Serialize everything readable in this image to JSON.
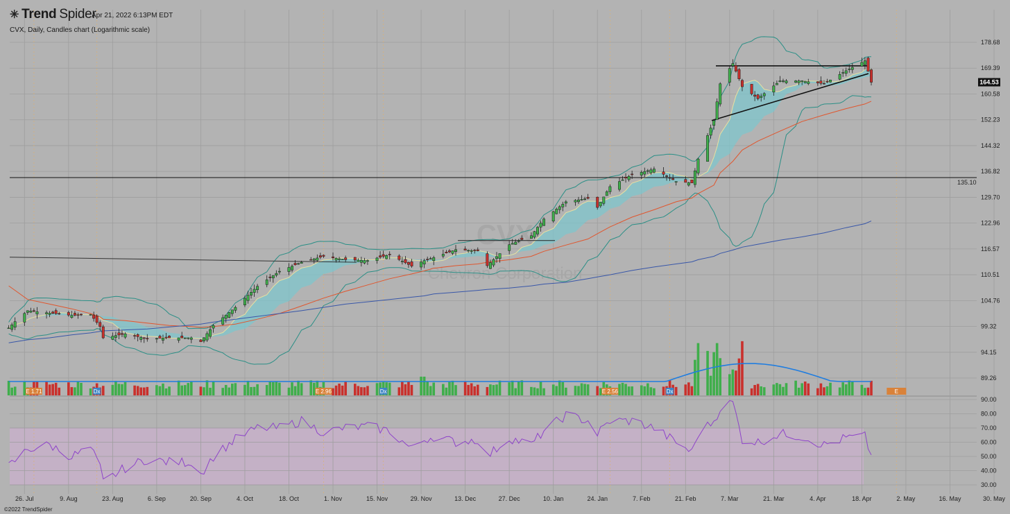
{
  "header": {
    "brand_bold": "Trend",
    "brand_light": "Spider",
    "logo_icon": "spider-logo-icon",
    "timestamp": "Apr 21, 2022 6:13PM EDT",
    "subtitle": "CVX, Daily, Candles chart (Logarithmic scale)"
  },
  "watermark": {
    "ticker": "CVX",
    "name": "Chevron Corporation"
  },
  "footer": {
    "copyright": "©2022 TrendSpider"
  },
  "colors": {
    "background": "#b3b3b3",
    "up_candle": "#3fae4b",
    "down_candle": "#c9302c",
    "bb_line": "#2a8f86",
    "ema_fill": "#7cc7cf",
    "sma50": "#e0562e",
    "sma200": "#3856a8",
    "vol_avg": "#1f7de0",
    "rsi": "#8e44c9",
    "rsi_band": "#c7b0c9"
  },
  "chart_data": [
    {
      "type": "line",
      "title": "CVX, Daily, Candles chart (Logarithmic scale)",
      "price_scale": "log",
      "ylim": [
        87.0,
        184.0
      ],
      "y_ticks": [
        "178.68",
        "169.39",
        "160.58",
        "152.23",
        "144.32",
        "136.82",
        "129.70",
        "122.96",
        "116.57",
        "110.51",
        "104.76",
        "99.32",
        "94.15",
        "89.26"
      ],
      "x_ticks": [
        "26. Jul",
        "9. Aug",
        "23. Aug",
        "6. Sep",
        "20. Sep",
        "4. Oct",
        "18. Oct",
        "1. Nov",
        "15. Nov",
        "29. Nov",
        "13. Dec",
        "27. Dec",
        "10. Jan",
        "24. Jan",
        "7. Feb",
        "21. Feb",
        "7. Mar",
        "21. Mar",
        "4. Apr",
        "18. Apr",
        "2. May",
        "16. May",
        "30. May"
      ],
      "last_price": "164.53",
      "horizontal_line": {
        "value": "135.10"
      },
      "x_dates": [
        "2021-07-21",
        "2021-07-23",
        "2021-07-27",
        "2021-08-03",
        "2021-08-10",
        "2021-08-16",
        "2021-08-19",
        "2021-08-20",
        "2021-08-27",
        "2021-09-03",
        "2021-09-10",
        "2021-09-17",
        "2021-09-20",
        "2021-09-24",
        "2021-10-01",
        "2021-10-08",
        "2021-10-15",
        "2021-10-22",
        "2021-10-29",
        "2021-11-05",
        "2021-11-12",
        "2021-11-19",
        "2021-11-26",
        "2021-11-30",
        "2021-12-03",
        "2021-12-10",
        "2021-12-17",
        "2021-12-20",
        "2021-12-27",
        "2022-01-03",
        "2022-01-07",
        "2022-01-14",
        "2022-01-21",
        "2022-01-24",
        "2022-01-28",
        "2022-02-04",
        "2022-02-11",
        "2022-02-18",
        "2022-02-23",
        "2022-02-25",
        "2022-03-02",
        "2022-03-04",
        "2022-03-08",
        "2022-03-11",
        "2022-03-16",
        "2022-03-23",
        "2022-03-30",
        "2022-04-06",
        "2022-04-13",
        "2022-04-19",
        "2022-04-21"
      ],
      "series": [
        {
          "name": "close",
          "values": [
            99.0,
            100.3,
            102.6,
            102.1,
            101.6,
            101.8,
            99.3,
            97.0,
            97.8,
            96.8,
            97.0,
            97.0,
            96.2,
            99.5,
            103.3,
            107.9,
            111.3,
            113.4,
            114.8,
            114.0,
            113.8,
            115.2,
            112.5,
            113.8,
            114.5,
            116.4,
            116.1,
            112.6,
            117.6,
            119.8,
            124.0,
            128.5,
            129.4,
            127.0,
            132.6,
            135.9,
            137.5,
            134.0,
            133.6,
            140.4,
            152.0,
            164.0,
            171.0,
            163.0,
            159.0,
            165.0,
            165.0,
            164.0,
            168.5,
            172.0,
            164.53
          ]
        },
        {
          "name": "sma50",
          "values": [
            108.0,
            107.0,
            105.0,
            104.0,
            103.0,
            102.0,
            101.3,
            100.8,
            100.5,
            100.0,
            99.5,
            99.3,
            99.1,
            99.3,
            99.8,
            100.8,
            102.0,
            103.6,
            105.3,
            106.8,
            108.2,
            109.6,
            110.7,
            111.4,
            112.0,
            112.6,
            113.0,
            113.4,
            114.0,
            114.8,
            116.0,
            117.5,
            119.0,
            120.3,
            122.0,
            124.5,
            126.4,
            128.5,
            129.5,
            130.7,
            133.0,
            136.4,
            139.7,
            143.0,
            145.7,
            148.7,
            151.7,
            153.8,
            155.8,
            157.3,
            158.2
          ]
        },
        {
          "name": "sma200",
          "values": [
            96.0,
            96.2,
            96.6,
            97.0,
            97.6,
            98.0,
            98.3,
            98.4,
            98.6,
            98.8,
            99.2,
            99.6,
            99.8,
            100.2,
            100.8,
            101.4,
            102.0,
            102.6,
            103.3,
            104.0,
            104.5,
            105.0,
            105.5,
            105.8,
            106.2,
            106.6,
            107.0,
            107.2,
            107.5,
            108.0,
            108.4,
            108.8,
            109.6,
            110.0,
            110.5,
            111.5,
            112.3,
            113.0,
            113.5,
            114.0,
            114.8,
            115.5,
            116.3,
            117.0,
            117.7,
            118.7,
            119.5,
            120.5,
            121.8,
            122.8,
            123.5
          ]
        }
      ]
    },
    {
      "type": "bar",
      "title": "",
      "markers": [
        {
          "date": "2021-07-29",
          "label": "E 1.71"
        },
        {
          "date": "2021-08-18",
          "label": "Dx"
        },
        {
          "date": "2021-10-29",
          "label": "E 2.96"
        },
        {
          "date": "2021-11-17",
          "label": "Dx"
        },
        {
          "date": "2022-01-28",
          "label": "E 2.56"
        },
        {
          "date": "2022-02-16",
          "label": "Dx"
        },
        {
          "date": "2022-04-29",
          "label": "E"
        }
      ]
    },
    {
      "type": "line",
      "title": "",
      "ylim": [
        25,
        92
      ],
      "y_ticks": [
        "90.00",
        "80.00",
        "70.00",
        "60.00",
        "50.00",
        "40.00",
        "30.00"
      ],
      "overbought": 70,
      "oversold": 30,
      "series": [
        {
          "name": "rsi",
          "values": [
            43,
            47,
            55,
            58,
            50,
            56,
            42,
            32,
            42,
            48,
            46,
            46,
            38,
            50,
            62,
            70,
            70,
            75,
            67,
            70,
            71,
            68,
            55,
            62,
            64,
            60,
            62,
            50,
            63,
            58,
            68,
            79,
            75,
            66,
            75,
            75,
            70,
            60,
            53,
            66,
            75,
            84,
            88,
            62,
            60,
            66,
            64,
            58,
            63,
            64,
            50
          ]
        }
      ]
    }
  ]
}
